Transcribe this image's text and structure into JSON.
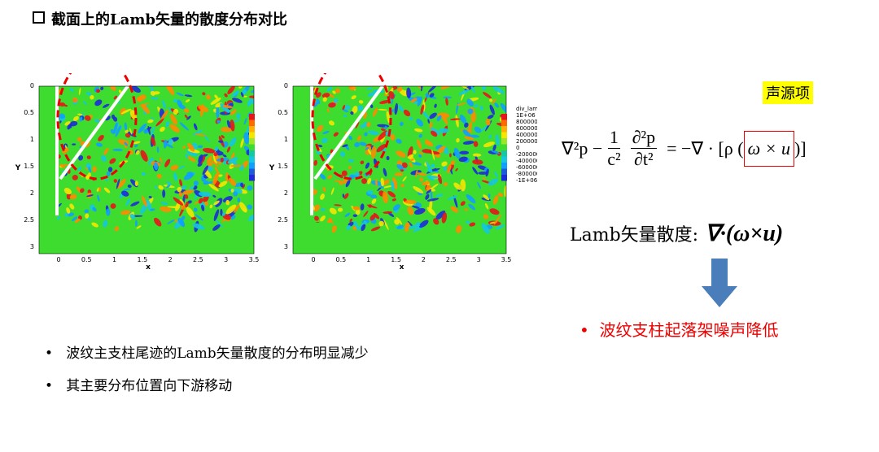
{
  "title": "截面上的Lamb矢量的散度分布对比",
  "plots": [
    {
      "x_label": "x",
      "y_label": "Y",
      "x_ticks": [
        "0",
        "0.5",
        "1",
        "1.5",
        "2",
        "2.5",
        "3",
        "3.5"
      ],
      "y_ticks": [
        "0",
        "0.5",
        "1",
        "1.5",
        "2",
        "2.5",
        "3"
      ]
    },
    {
      "x_label": "x",
      "y_label": "Y",
      "x_ticks": [
        "0",
        "0.5",
        "1",
        "1.5",
        "2",
        "2.5",
        "3",
        "3.5"
      ],
      "y_ticks": [
        "0",
        "0.5",
        "1",
        "1.5",
        "2",
        "2.5",
        "3"
      ],
      "legend_title": "div_lamb",
      "legend_labels": [
        "1E+06",
        "800000",
        "600000",
        "400000",
        "200000",
        "0",
        "-200000",
        "-400000",
        "-600000",
        "-800000",
        "-1E+06"
      ]
    }
  ],
  "tag": "声源项",
  "equation": {
    "lhs": "∇²p −",
    "frac1_num": "1",
    "frac1_den": "c²",
    "frac2_num": "∂²p",
    "frac2_den": "∂t²",
    "rhs_a": "= −∇ · [ρ (",
    "boxed": "ω × u",
    "rhs_b": ")]"
  },
  "lamb_label": "Lamb矢量散度:",
  "lamb_expr": "∇·(ω×u)",
  "conclusion": "波纹支柱起落架噪声降低",
  "bullets": [
    "波纹主支柱尾迹的Lamb矢量散度的分布明显减少",
    "其主要分布位置向下游移动"
  ]
}
